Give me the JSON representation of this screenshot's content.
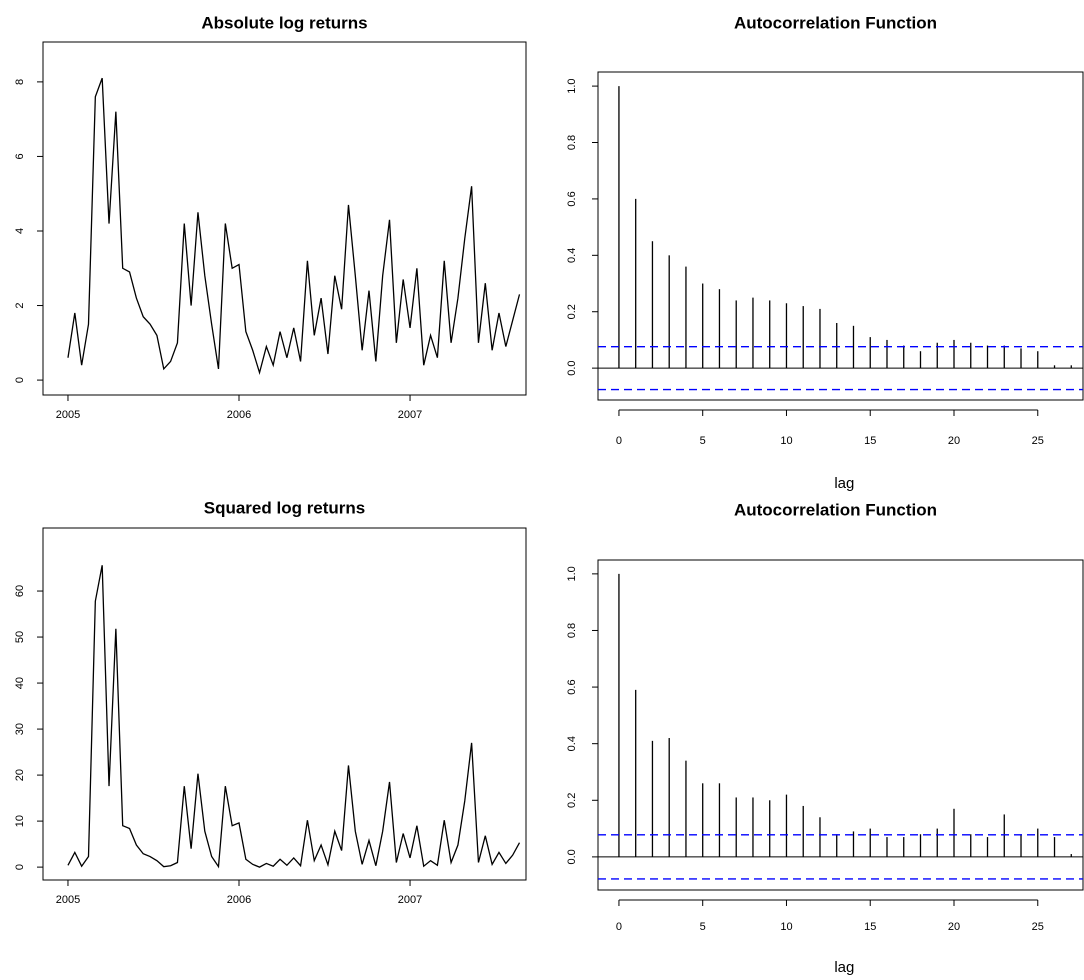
{
  "chart_data": [
    {
      "type": "line",
      "title": "Absolute log returns",
      "color": "#000000",
      "x": [
        2005.0,
        2005.04,
        2005.08,
        2005.12,
        2005.16,
        2005.2,
        2005.24,
        2005.28,
        2005.32,
        2005.36,
        2005.4,
        2005.44,
        2005.48,
        2005.52,
        2005.56,
        2005.6,
        2005.64,
        2005.68,
        2005.72,
        2005.76,
        2005.8,
        2005.84,
        2005.88,
        2005.92,
        2005.96,
        2006.0,
        2006.04,
        2006.08,
        2006.12,
        2006.16,
        2006.2,
        2006.24,
        2006.28,
        2006.32,
        2006.36,
        2006.4,
        2006.44,
        2006.48,
        2006.52,
        2006.56,
        2006.6,
        2006.64,
        2006.68,
        2006.72,
        2006.76,
        2006.8,
        2006.84,
        2006.88,
        2006.92,
        2006.96,
        2007.0,
        2007.04,
        2007.08,
        2007.12,
        2007.16,
        2007.2,
        2007.24,
        2007.28,
        2007.32,
        2007.36,
        2007.4,
        2007.44,
        2007.48,
        2007.52,
        2007.56,
        2007.6,
        2007.64
      ],
      "values": [
        0.6,
        1.8,
        0.4,
        1.5,
        7.6,
        8.1,
        4.2,
        7.2,
        3.0,
        2.9,
        2.2,
        1.7,
        1.5,
        1.2,
        0.3,
        0.5,
        1.0,
        4.2,
        2.0,
        4.5,
        2.8,
        1.5,
        0.3,
        4.2,
        3.0,
        3.1,
        1.3,
        0.8,
        0.2,
        0.9,
        0.4,
        1.3,
        0.6,
        1.4,
        0.5,
        3.2,
        1.2,
        2.2,
        0.7,
        2.8,
        1.9,
        4.7,
        2.8,
        0.8,
        2.4,
        0.5,
        2.8,
        4.3,
        1.0,
        2.7,
        1.4,
        3.0,
        0.4,
        1.2,
        0.6,
        3.2,
        1.0,
        2.2,
        3.8,
        5.2,
        1.0,
        2.6,
        0.8,
        1.8,
        0.9,
        1.6,
        2.3
      ],
      "xlim": [
        2004.854,
        2007.678
      ],
      "xticks": [
        2005,
        2006,
        2007
      ],
      "ylim": [
        -0.4,
        9.07
      ],
      "yticks": [
        0,
        2,
        4,
        6,
        8
      ]
    },
    {
      "type": "stem",
      "title": "Autocorrelation Function",
      "xlabel": "lag",
      "color": "#000000",
      "x": [
        0,
        1,
        2,
        3,
        4,
        5,
        6,
        7,
        8,
        9,
        10,
        11,
        12,
        13,
        14,
        15,
        16,
        17,
        18,
        19,
        20,
        21,
        22,
        23,
        24,
        25,
        26,
        27
      ],
      "values": [
        1.0,
        0.6,
        0.45,
        0.4,
        0.36,
        0.3,
        0.28,
        0.24,
        0.25,
        0.24,
        0.23,
        0.22,
        0.21,
        0.16,
        0.15,
        0.11,
        0.1,
        0.08,
        0.06,
        0.09,
        0.1,
        0.09,
        0.08,
        0.08,
        0.07,
        0.06,
        0.01,
        0.01
      ],
      "ci": [
        0.076,
        -0.076
      ],
      "ci_color": "#0000ff",
      "xlim": [
        -1.25,
        27.7
      ],
      "xticks": [
        0,
        5,
        10,
        15,
        20,
        25
      ],
      "ylim": [
        -0.113,
        1.05
      ],
      "yticks": [
        {
          "value": 0,
          "label": "0.0"
        },
        {
          "value": 0.2,
          "label": "0.2"
        },
        {
          "value": 0.4,
          "label": "0.4"
        },
        {
          "value": 0.6,
          "label": "0.6"
        },
        {
          "value": 0.8,
          "label": "0.8"
        },
        {
          "value": 1,
          "label": "1.0"
        }
      ]
    },
    {
      "type": "line",
      "title": "Squared log returns",
      "color": "#000000",
      "x": [
        2005.0,
        2005.04,
        2005.08,
        2005.12,
        2005.16,
        2005.2,
        2005.24,
        2005.28,
        2005.32,
        2005.36,
        2005.4,
        2005.44,
        2005.48,
        2005.52,
        2005.56,
        2005.6,
        2005.64,
        2005.68,
        2005.72,
        2005.76,
        2005.8,
        2005.84,
        2005.88,
        2005.92,
        2005.96,
        2006.0,
        2006.04,
        2006.08,
        2006.12,
        2006.16,
        2006.2,
        2006.24,
        2006.28,
        2006.32,
        2006.36,
        2006.4,
        2006.44,
        2006.48,
        2006.52,
        2006.56,
        2006.6,
        2006.64,
        2006.68,
        2006.72,
        2006.76,
        2006.8,
        2006.84,
        2006.88,
        2006.92,
        2006.96,
        2007.0,
        2007.04,
        2007.08,
        2007.12,
        2007.16,
        2007.2,
        2007.24,
        2007.28,
        2007.32,
        2007.36,
        2007.4,
        2007.44,
        2007.48,
        2007.52,
        2007.56,
        2007.6,
        2007.64
      ],
      "values": [
        0.4,
        3.2,
        0.2,
        2.3,
        57.8,
        65.6,
        17.6,
        51.8,
        9.0,
        8.4,
        4.8,
        2.9,
        2.3,
        1.4,
        0.1,
        0.3,
        1.0,
        17.6,
        4.0,
        20.3,
        7.8,
        2.3,
        0.1,
        17.6,
        9.0,
        9.6,
        1.7,
        0.6,
        0.0,
        0.8,
        0.2,
        1.7,
        0.4,
        2.0,
        0.3,
        10.2,
        1.4,
        4.8,
        0.5,
        7.8,
        3.6,
        22.1,
        7.8,
        0.6,
        5.8,
        0.3,
        7.8,
        18.5,
        1.0,
        7.3,
        2.0,
        9.0,
        0.2,
        1.4,
        0.4,
        10.2,
        1.0,
        4.8,
        14.4,
        27.0,
        1.0,
        6.8,
        0.6,
        3.2,
        0.8,
        2.6,
        5.3
      ],
      "xlim": [
        2004.854,
        2007.678
      ],
      "xticks": [
        2005,
        2006,
        2007
      ],
      "ylim": [
        -2.8,
        73.7
      ],
      "yticks": [
        0,
        10,
        20,
        30,
        40,
        50,
        60
      ]
    },
    {
      "type": "stem",
      "title": "Autocorrelation Function",
      "xlabel": "lag",
      "color": "#000000",
      "x": [
        0,
        1,
        2,
        3,
        4,
        5,
        6,
        7,
        8,
        9,
        10,
        11,
        12,
        13,
        14,
        15,
        16,
        17,
        18,
        19,
        20,
        21,
        22,
        23,
        24,
        25,
        26,
        27
      ],
      "values": [
        1.0,
        0.59,
        0.41,
        0.42,
        0.34,
        0.26,
        0.26,
        0.21,
        0.21,
        0.2,
        0.22,
        0.18,
        0.14,
        0.08,
        0.09,
        0.1,
        0.07,
        0.07,
        0.08,
        0.1,
        0.17,
        0.08,
        0.07,
        0.15,
        0.08,
        0.1,
        0.07,
        0.01
      ],
      "ci": [
        0.078,
        -0.078
      ],
      "ci_color": "#0000ff",
      "xlim": [
        -1.25,
        27.7
      ],
      "xticks": [
        0,
        5,
        10,
        15,
        20,
        25
      ],
      "ylim": [
        -0.117,
        1.049
      ],
      "yticks": [
        {
          "value": 0,
          "label": "0.0"
        },
        {
          "value": 0.2,
          "label": "0.2"
        },
        {
          "value": 0.4,
          "label": "0.4"
        },
        {
          "value": 0.6,
          "label": "0.6"
        },
        {
          "value": 0.8,
          "label": "0.8"
        },
        {
          "value": 1,
          "label": "1.0"
        }
      ]
    }
  ]
}
